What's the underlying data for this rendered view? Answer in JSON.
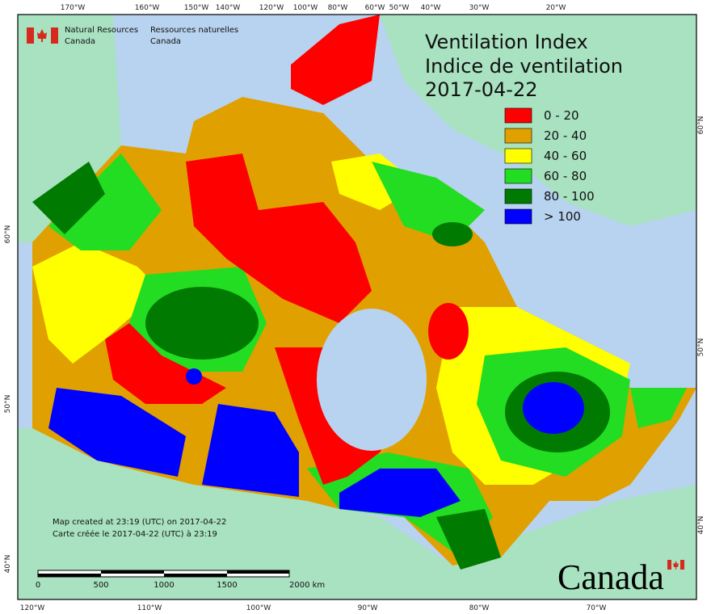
{
  "header": {
    "agency_en": "Natural Resources",
    "agency_en_2": "Canada",
    "agency_fr": "Ressources naturelles",
    "agency_fr_2": "Canada"
  },
  "title": {
    "en": "Ventilation Index",
    "fr": "Indice de ventilation",
    "date": "2017-04-22"
  },
  "legend": [
    {
      "label": "0 - 20",
      "color": "#ff0000"
    },
    {
      "label": "20 - 40",
      "color": "#e0a000"
    },
    {
      "label": "40 - 60",
      "color": "#ffff00"
    },
    {
      "label": "60 - 80",
      "color": "#22dd22"
    },
    {
      "label": "80 - 100",
      "color": "#007a00"
    },
    {
      "label": "> 100",
      "color": "#0000ff"
    }
  ],
  "graticule": {
    "top": [
      "170°W",
      "160°W",
      "150°W",
      "140°W",
      "120°W",
      "100°W",
      "80°W",
      "60°W",
      "50°W",
      "40°W",
      "30°W",
      "20°W"
    ],
    "bottom": [
      "120°W",
      "110°W",
      "100°W",
      "90°W",
      "80°W",
      "70°W"
    ],
    "left": [
      "60°N",
      "50°N",
      "40°N"
    ],
    "right": [
      "60°N",
      "50°N",
      "40°N"
    ]
  },
  "credits": [
    "Map created at 23:19 (UTC) on 2017-04-22",
    "Carte créée le 2017-04-22 (UTC) à 23:19"
  ],
  "scale_bar": {
    "labels": [
      "0",
      "500",
      "1000",
      "1500",
      "2000 km"
    ]
  },
  "wordmark": "Canada"
}
